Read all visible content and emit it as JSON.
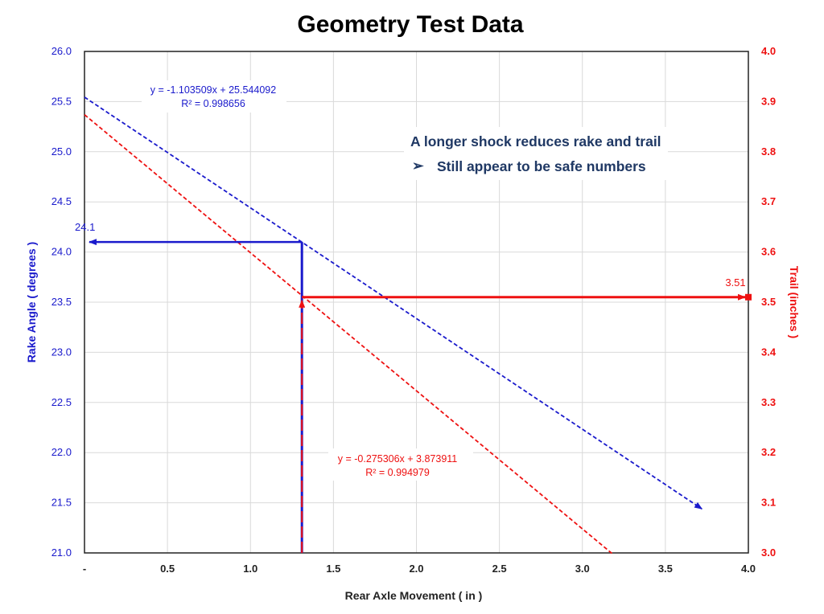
{
  "chart_data": {
    "type": "line",
    "title": "Geometry Test Data",
    "xlabel": "Rear Axle Movement  ( in )",
    "ylabel_left": "Rake Angle  ( degrees )",
    "ylabel_right": "Trail  (inches )",
    "xlim": [
      0,
      4.0
    ],
    "ylim_left": [
      21.0,
      26.0
    ],
    "ylim_right": [
      3.0,
      4.0
    ],
    "x_ticks": [
      "-",
      "0.5",
      "1.0",
      "1.5",
      "2.0",
      "2.5",
      "3.0",
      "3.5",
      "4.0"
    ],
    "y_left_ticks": [
      "21.0",
      "21.5",
      "22.0",
      "22.5",
      "23.0",
      "23.5",
      "24.0",
      "24.5",
      "25.0",
      "25.5",
      "26.0"
    ],
    "y_right_ticks": [
      "3.0",
      "3.1",
      "3.2",
      "3.3",
      "3.4",
      "3.5",
      "3.6",
      "3.7",
      "3.8",
      "3.9",
      "4.0"
    ],
    "grid": true,
    "colors": {
      "rake": "#1a1acc",
      "trail": "#ee1111",
      "title": "#111111",
      "note": "#1f3864"
    },
    "series": [
      {
        "axis": "left",
        "style": "dashed",
        "slope": -1.103509,
        "intercept": 25.544092,
        "x_start": 0,
        "x_end": 3.72
      },
      {
        "axis": "right",
        "style": "dashed",
        "slope": -0.275306,
        "intercept": 3.873911,
        "x_start": 0,
        "x_end": 3.18
      }
    ],
    "reference": {
      "x": 1.31,
      "rake_value": 24.1,
      "rake_label": "24.1",
      "trail_value": 3.51,
      "trail_label": "3.51"
    },
    "annotations": {
      "rake_equation": "y = -1.103509x + 25.544092",
      "rake_r2": "R² = 0.998656",
      "trail_equation": "y = -0.275306x + 3.873911",
      "trail_r2": "R² = 0.994979",
      "note_heading": "A longer shock reduces rake and trail",
      "note_bullet": "Still appear to be safe numbers",
      "bullet_symbol": "➢"
    }
  }
}
